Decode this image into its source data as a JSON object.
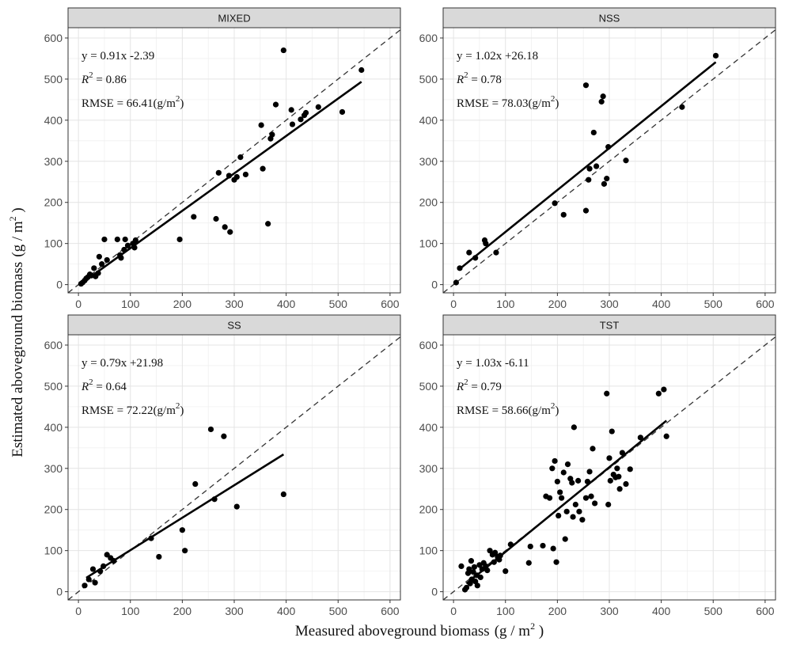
{
  "figure": {
    "xlabel": "Measured aboveground biomass",
    "ylabel": "Estimated aboveground biomass",
    "unit_text": "(g / m",
    "unit_sup": "2",
    "unit_close": " )"
  },
  "chart_data": [
    {
      "type": "scatter",
      "panel": "MIXED",
      "xlim": [
        -20,
        620
      ],
      "ylim": [
        -20,
        625
      ],
      "xticks": [
        0,
        100,
        200,
        300,
        400,
        500,
        600
      ],
      "yticks": [
        0,
        100,
        200,
        300,
        400,
        500,
        600
      ],
      "grid": true,
      "equation": "y = 0.91x -2.39",
      "r2_value": " = 0.86",
      "rmse_value": "RMSE = 66.41(g/m",
      "fit": {
        "slope": 0.91,
        "intercept": -2.39,
        "x_range": [
          5,
          545
        ]
      },
      "identity_line": true,
      "points": [
        [
          5,
          2
        ],
        [
          8,
          5
        ],
        [
          12,
          10
        ],
        [
          15,
          15
        ],
        [
          18,
          18
        ],
        [
          22,
          25
        ],
        [
          25,
          22
        ],
        [
          30,
          40
        ],
        [
          33,
          20
        ],
        [
          38,
          28
        ],
        [
          40,
          68
        ],
        [
          45,
          50
        ],
        [
          50,
          110
        ],
        [
          55,
          60
        ],
        [
          75,
          110
        ],
        [
          80,
          72
        ],
        [
          82,
          65
        ],
        [
          88,
          85
        ],
        [
          90,
          110
        ],
        [
          95,
          95
        ],
        [
          105,
          100
        ],
        [
          108,
          90
        ],
        [
          110,
          108
        ],
        [
          195,
          110
        ],
        [
          222,
          165
        ],
        [
          265,
          160
        ],
        [
          270,
          272
        ],
        [
          282,
          140
        ],
        [
          290,
          265
        ],
        [
          292,
          128
        ],
        [
          300,
          255
        ],
        [
          305,
          262
        ],
        [
          312,
          310
        ],
        [
          322,
          268
        ],
        [
          352,
          388
        ],
        [
          355,
          282
        ],
        [
          365,
          148
        ],
        [
          370,
          355
        ],
        [
          373,
          365
        ],
        [
          380,
          438
        ],
        [
          395,
          570
        ],
        [
          410,
          425
        ],
        [
          412,
          390
        ],
        [
          428,
          402
        ],
        [
          435,
          412
        ],
        [
          438,
          418
        ],
        [
          462,
          432
        ],
        [
          508,
          420
        ],
        [
          545,
          522
        ]
      ]
    },
    {
      "type": "scatter",
      "panel": "NSS",
      "xlim": [
        -20,
        620
      ],
      "ylim": [
        -20,
        625
      ],
      "xticks": [
        0,
        100,
        200,
        300,
        400,
        500,
        600
      ],
      "yticks": [
        0,
        100,
        200,
        300,
        400,
        500,
        600
      ],
      "grid": true,
      "equation": "y = 1.02x +26.18",
      "r2_value": " = 0.78",
      "rmse_value": "RMSE = 78.03(g/m",
      "fit": {
        "slope": 1.02,
        "intercept": 26.18,
        "x_range": [
          10,
          505
        ]
      },
      "identity_line": true,
      "points": [
        [
          5,
          5
        ],
        [
          12,
          40
        ],
        [
          30,
          78
        ],
        [
          42,
          65
        ],
        [
          60,
          108
        ],
        [
          62,
          100
        ],
        [
          82,
          78
        ],
        [
          195,
          198
        ],
        [
          212,
          170
        ],
        [
          255,
          180
        ],
        [
          255,
          485
        ],
        [
          260,
          255
        ],
        [
          262,
          282
        ],
        [
          270,
          370
        ],
        [
          275,
          288
        ],
        [
          285,
          445
        ],
        [
          288,
          458
        ],
        [
          290,
          245
        ],
        [
          295,
          258
        ],
        [
          298,
          335
        ],
        [
          332,
          302
        ],
        [
          440,
          432
        ],
        [
          505,
          557
        ]
      ]
    },
    {
      "type": "scatter",
      "panel": "SS",
      "xlim": [
        -20,
        620
      ],
      "ylim": [
        -20,
        625
      ],
      "xticks": [
        0,
        100,
        200,
        300,
        400,
        500,
        600
      ],
      "yticks": [
        0,
        100,
        200,
        300,
        400,
        500,
        600
      ],
      "grid": true,
      "equation": "y = 0.79x +21.98",
      "r2_value": " = 0.64",
      "rmse_value": "RMSE = 72.22(g/m",
      "fit": {
        "slope": 0.79,
        "intercept": 21.98,
        "x_range": [
          15,
          395
        ]
      },
      "identity_line": true,
      "points": [
        [
          12,
          15
        ],
        [
          20,
          30
        ],
        [
          28,
          55
        ],
        [
          32,
          22
        ],
        [
          42,
          50
        ],
        [
          48,
          62
        ],
        [
          55,
          90
        ],
        [
          62,
          82
        ],
        [
          68,
          75
        ],
        [
          140,
          130
        ],
        [
          155,
          85
        ],
        [
          200,
          150
        ],
        [
          205,
          100
        ],
        [
          225,
          262
        ],
        [
          255,
          395
        ],
        [
          262,
          225
        ],
        [
          280,
          378
        ],
        [
          305,
          207
        ],
        [
          395,
          237
        ]
      ]
    },
    {
      "type": "scatter",
      "panel": "TST",
      "xlim": [
        -20,
        620
      ],
      "ylim": [
        -20,
        625
      ],
      "xticks": [
        0,
        100,
        200,
        300,
        400,
        500,
        600
      ],
      "yticks": [
        0,
        100,
        200,
        300,
        400,
        500,
        600
      ],
      "grid": true,
      "equation": "y = 1.03x -6.11",
      "r2_value": " = 0.79",
      "rmse_value": "RMSE = 58.66(g/m",
      "fit": {
        "slope": 1.03,
        "intercept": -6.11,
        "x_range": [
          25,
          410
        ]
      },
      "identity_line": true,
      "points": [
        [
          15,
          62
        ],
        [
          22,
          5
        ],
        [
          25,
          10
        ],
        [
          28,
          45
        ],
        [
          30,
          55
        ],
        [
          32,
          20
        ],
        [
          34,
          75
        ],
        [
          35,
          30
        ],
        [
          38,
          48
        ],
        [
          40,
          60
        ],
        [
          42,
          25
        ],
        [
          45,
          40
        ],
        [
          46,
          15
        ],
        [
          50,
          65
        ],
        [
          52,
          35
        ],
        [
          55,
          55
        ],
        [
          58,
          70
        ],
        [
          62,
          62
        ],
        [
          65,
          52
        ],
        [
          70,
          100
        ],
        [
          75,
          90
        ],
        [
          78,
          72
        ],
        [
          80,
          95
        ],
        [
          85,
          85
        ],
        [
          88,
          78
        ],
        [
          90,
          88
        ],
        [
          100,
          50
        ],
        [
          110,
          115
        ],
        [
          145,
          70
        ],
        [
          148,
          110
        ],
        [
          172,
          112
        ],
        [
          178,
          232
        ],
        [
          185,
          228
        ],
        [
          190,
          300
        ],
        [
          192,
          105
        ],
        [
          195,
          318
        ],
        [
          198,
          72
        ],
        [
          200,
          268
        ],
        [
          202,
          185
        ],
        [
          205,
          242
        ],
        [
          208,
          228
        ],
        [
          212,
          290
        ],
        [
          215,
          128
        ],
        [
          218,
          195
        ],
        [
          220,
          310
        ],
        [
          225,
          275
        ],
        [
          228,
          265
        ],
        [
          230,
          182
        ],
        [
          232,
          400
        ],
        [
          235,
          212
        ],
        [
          240,
          270
        ],
        [
          242,
          195
        ],
        [
          248,
          175
        ],
        [
          255,
          228
        ],
        [
          258,
          268
        ],
        [
          262,
          292
        ],
        [
          265,
          232
        ],
        [
          268,
          348
        ],
        [
          272,
          215
        ],
        [
          295,
          482
        ],
        [
          298,
          212
        ],
        [
          300,
          325
        ],
        [
          302,
          270
        ],
        [
          305,
          390
        ],
        [
          308,
          285
        ],
        [
          312,
          278
        ],
        [
          315,
          300
        ],
        [
          318,
          280
        ],
        [
          320,
          250
        ],
        [
          325,
          338
        ],
        [
          332,
          262
        ],
        [
          340,
          298
        ],
        [
          360,
          375
        ],
        [
          395,
          482
        ],
        [
          405,
          492
        ],
        [
          410,
          378
        ]
      ]
    }
  ]
}
